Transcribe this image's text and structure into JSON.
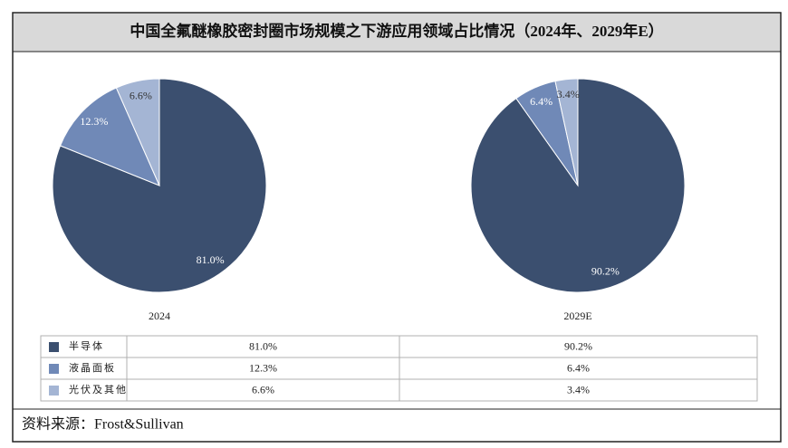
{
  "chart_data": {
    "type": "pie",
    "title": "中国全氟醚橡胶密封圈市场规模之下游应用领域占比情况（2024年、2029年E）",
    "categories": [
      "2024",
      "2029E"
    ],
    "series": [
      {
        "name": "半导体",
        "color": "#3b4f6f",
        "values": [
          81.0,
          90.2
        ],
        "value_labels": [
          "81.0%",
          "90.2%"
        ]
      },
      {
        "name": "液晶面板",
        "color": "#7089b7",
        "values": [
          12.3,
          6.4
        ],
        "value_labels": [
          "12.3%",
          "6.4%"
        ]
      },
      {
        "name": "光伏及其他",
        "color": "#a4b5d4",
        "values": [
          6.6,
          3.4
        ],
        "value_labels": [
          "6.6%",
          "3.4%"
        ]
      }
    ],
    "source": "资料来源：Frost&Sullivan"
  }
}
